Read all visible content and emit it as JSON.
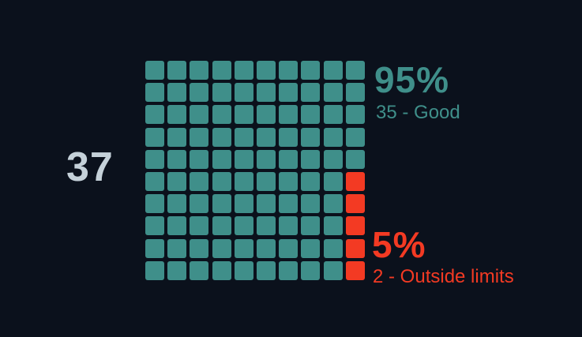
{
  "chart_data": {
    "type": "waffle",
    "total": "37",
    "grid": {
      "rows": 10,
      "cols": 10
    },
    "series": [
      {
        "name": "Good",
        "count": 35,
        "percent": "95%",
        "label": "35 - Good",
        "color": "#3f8f8a"
      },
      {
        "name": "Outside limits",
        "count": 2,
        "percent": "5%",
        "label": "2 - Outside limits",
        "color": "#f33a23"
      }
    ],
    "cells": {
      "good": 95,
      "outside_limits": 5
    }
  },
  "colors": {
    "background": "#0b111c",
    "good": "#3f8f8a",
    "outside_limits": "#f33a23",
    "total_text": "#c5d1d9"
  }
}
